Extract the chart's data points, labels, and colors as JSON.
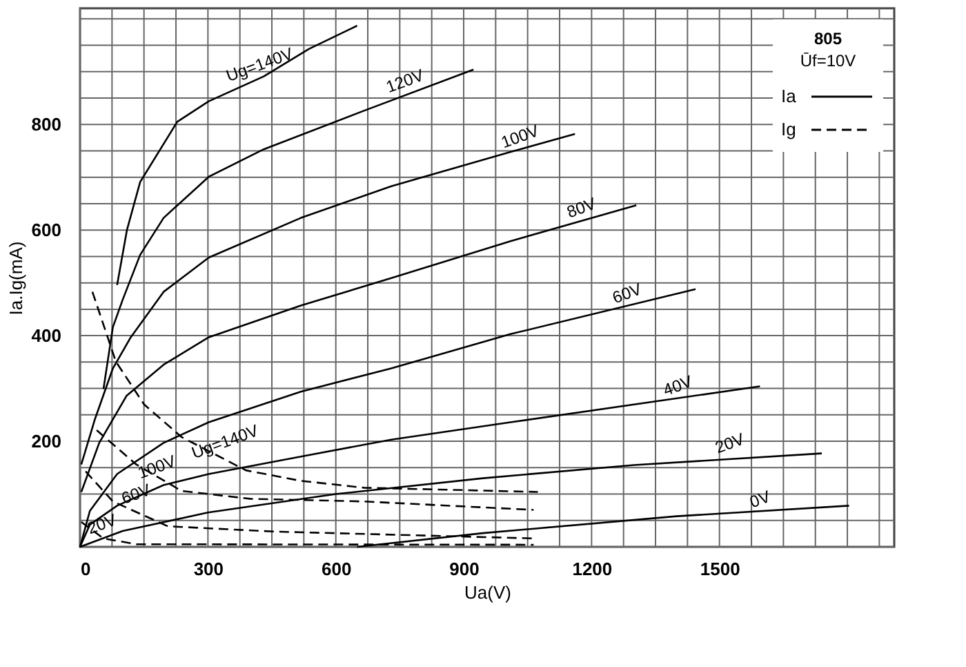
{
  "chart_data": {
    "type": "line",
    "xlabel": "Ua(V)",
    "ylabel": "Ia.Ig(mA)",
    "legend_title": "805\nŪf=10V",
    "legend": "top right",
    "grid": true,
    "marker": "none",
    "xlim": [
      0,
      1910
    ],
    "ylim": [
      0,
      1020
    ],
    "xticks": [
      0,
      {
        "value": 75,
        "label": null
      },
      {
        "value": 150,
        "label": null
      },
      {
        "value": 225,
        "label": null
      },
      300,
      {
        "value": 375,
        "label": null
      },
      {
        "value": 450,
        "label": null
      },
      {
        "value": 525,
        "label": null
      },
      600,
      {
        "value": 675,
        "label": null
      },
      {
        "value": 750,
        "label": null
      },
      {
        "value": 825,
        "label": null
      },
      900,
      {
        "value": 975,
        "label": null
      },
      {
        "value": 1050,
        "label": null
      },
      {
        "value": 1125,
        "label": null
      },
      1200,
      {
        "value": 1275,
        "label": null
      },
      {
        "value": 1350,
        "label": null
      },
      {
        "value": 1425,
        "label": null
      },
      1500,
      {
        "value": 1575,
        "label": null
      },
      {
        "value": 1650,
        "label": null
      },
      {
        "value": 1725,
        "label": null
      },
      {
        "value": 1800,
        "label": null
      },
      {
        "value": 1875,
        "label": null
      }
    ],
    "yticks": [
      {
        "value": 0,
        "label": null
      },
      {
        "value": 50,
        "label": null
      },
      {
        "value": 100,
        "label": null
      },
      {
        "value": 150,
        "label": null
      },
      200,
      {
        "value": 250,
        "label": null
      },
      {
        "value": 300,
        "label": null
      },
      {
        "value": 350,
        "label": null
      },
      400,
      {
        "value": 450,
        "label": null
      },
      {
        "value": 500,
        "label": null
      },
      {
        "value": 550,
        "label": null
      },
      600,
      {
        "value": 650,
        "label": null
      },
      {
        "value": 700,
        "label": null
      },
      {
        "value": 750,
        "label": null
      },
      800,
      {
        "value": 850,
        "label": null
      },
      {
        "value": 900,
        "label": null
      },
      {
        "value": 950,
        "label": null
      },
      {
        "value": 1000,
        "label": null
      }
    ],
    "series": [
      {
        "name": "Ia",
        "color": "#000000",
        "line_style": "solid",
        "x": [
          87,
          110,
          141,
          228,
          302,
          431,
          537,
          650
        ],
        "values": [
          496,
          600,
          691,
          805,
          844,
          891,
          943,
          987
        ]
      },
      {
        "color": "#000000",
        "line_style": "solid",
        "x": [
          55,
          77,
          100,
          141,
          196,
          302,
          431,
          666,
          923
        ],
        "values": [
          299,
          416,
          468,
          553,
          623,
          701,
          753,
          826,
          904
        ]
      },
      {
        "color": "#000000",
        "line_style": "solid",
        "x": [
          3,
          35,
          77,
          119,
          196,
          302,
          518,
          730,
          1010,
          1161
        ],
        "values": [
          156,
          242,
          338,
          397,
          483,
          548,
          623,
          683,
          748,
          782
        ]
      },
      {
        "color": "#000000",
        "line_style": "solid",
        "x": [
          3,
          45,
          109,
          196,
          302,
          518,
          730,
          1010,
          1305
        ],
        "values": [
          104,
          197,
          286,
          345,
          397,
          457,
          509,
          579,
          647
        ]
      },
      {
        "color": "#000000",
        "line_style": "solid",
        "x": [
          0,
          23,
          87,
          196,
          302,
          518,
          730,
          1010,
          1444
        ],
        "values": [
          0,
          68,
          138,
          197,
          236,
          294,
          338,
          403,
          488
        ]
      },
      {
        "color": "#000000",
        "line_style": "solid",
        "x": [
          0,
          23,
          87,
          196,
          302,
          518,
          730,
          1010,
          1595
        ],
        "values": [
          0,
          42,
          78,
          117,
          138,
          171,
          203,
          236,
          304
        ]
      },
      {
        "color": "#000000",
        "line_style": "solid",
        "x": [
          0,
          100,
          300,
          600,
          945,
          1300,
          1740
        ],
        "values": [
          0,
          30,
          65,
          100,
          130,
          155,
          177
        ]
      },
      {
        "color": "#000000",
        "line_style": "solid",
        "x": [
          650,
          945,
          1400,
          1804
        ],
        "values": [
          0,
          26,
          58,
          78
        ]
      },
      {
        "name": "Ig",
        "color": "#000000",
        "line_style": "dashed",
        "x": [
          29,
          84,
          150,
          238,
          389,
          518,
          666,
          1074
        ],
        "values": [
          483,
          351,
          270,
          208,
          145,
          125,
          112,
          104
        ]
      },
      {
        "color": "#000000",
        "line_style": "dashed",
        "x": [
          39,
          132,
          238,
          399,
          666,
          1064
        ],
        "values": [
          221,
          156,
          106,
          91,
          86,
          70
        ]
      },
      {
        "color": "#000000",
        "line_style": "dashed",
        "x": [
          13,
          77,
          206,
          453,
          1064
        ],
        "values": [
          143,
          86,
          39,
          29,
          16
        ]
      },
      {
        "color": "#000000",
        "line_style": "dashed",
        "x": [
          3,
          55,
          132,
          1064
        ],
        "values": [
          47,
          16,
          5,
          4
        ]
      }
    ],
    "annotations": [
      {
        "text": "Ug=140V",
        "x": 431,
        "y": 891
      },
      {
        "text": "120V",
        "x": 772,
        "y": 860
      },
      {
        "text": "100V",
        "x": 1042,
        "y": 755
      },
      {
        "text": "80V",
        "x": 1186,
        "y": 620
      },
      {
        "text": "60V",
        "x": 1293,
        "y": 458
      },
      {
        "text": "40V",
        "x": 1412,
        "y": 283
      },
      {
        "text": "20V",
        "x": 1534,
        "y": 174
      },
      {
        "text": "0V",
        "x": 1605,
        "y": 68
      },
      {
        "text": "Ug=140V",
        "x": 350,
        "y": 177
      },
      {
        "text": "100V",
        "x": 190,
        "y": 129
      },
      {
        "text": "60V",
        "x": 141,
        "y": 78
      },
      {
        "text": "20V",
        "x": 61,
        "y": 21
      }
    ]
  }
}
